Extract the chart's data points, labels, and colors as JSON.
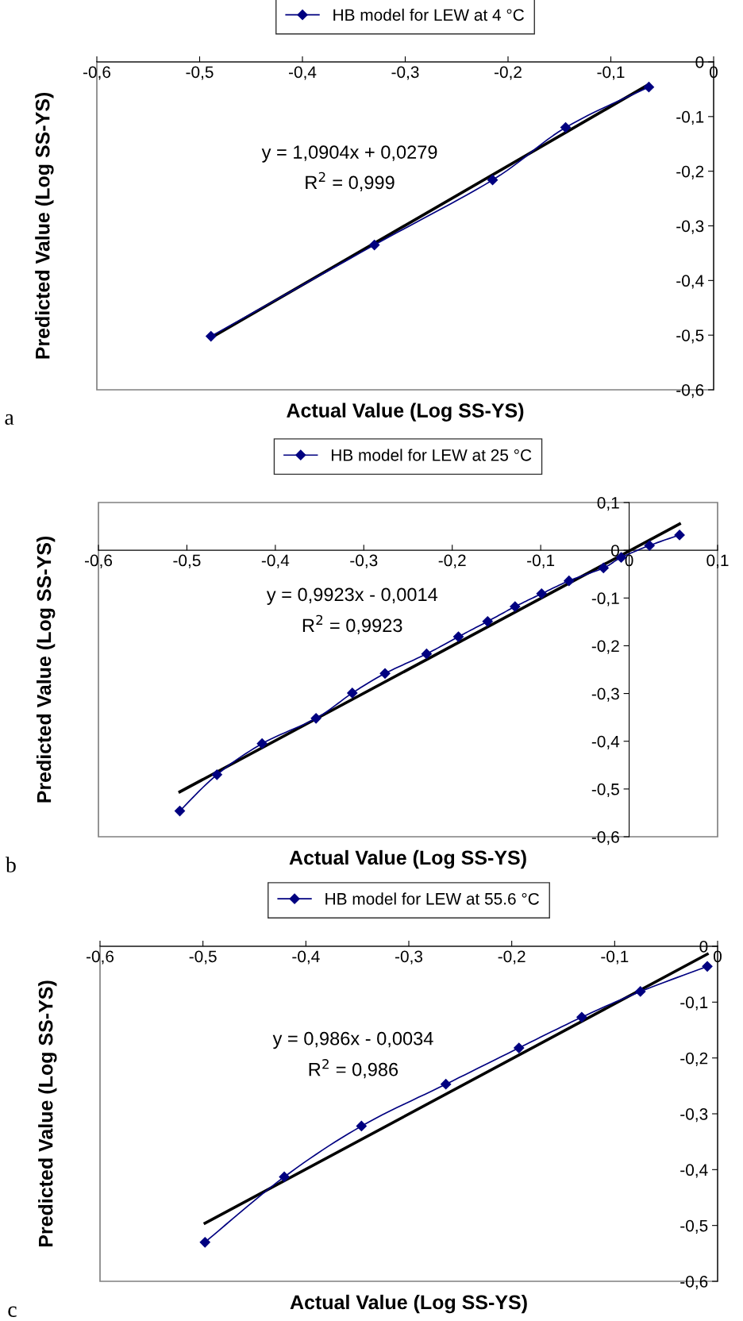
{
  "chart_data": [
    {
      "type": "line",
      "xlabel": "Actual Value (Log SS-YS)",
      "ylabel": "Predicted Value (Log SS-YS)",
      "legend": "top",
      "grid": false,
      "xlim": [
        -0.6,
        0
      ],
      "ylim": [
        -0.6,
        0
      ],
      "xticks": [
        {
          "value": -0.6,
          "label": "-0,6"
        },
        {
          "value": -0.5,
          "label": "-0,5"
        },
        {
          "value": -0.4,
          "label": "-0,4"
        },
        {
          "value": -0.3,
          "label": "-0,3"
        },
        {
          "value": -0.2,
          "label": "-0,2"
        },
        {
          "value": -0.1,
          "label": "-0,1"
        },
        0
      ],
      "yticks": [
        {
          "value": -0.6,
          "label": "-0,6"
        },
        {
          "value": -0.5,
          "label": "-0,5"
        },
        {
          "value": -0.4,
          "label": "-0,4"
        },
        {
          "value": -0.3,
          "label": "-0,3"
        },
        {
          "value": -0.2,
          "label": "-0,2"
        },
        {
          "value": -0.1,
          "label": "-0,1"
        },
        0
      ],
      "series": [
        {
          "name": "HB model for LEW at 4 °C",
          "color": "#000080",
          "marker": "diamond",
          "x": [
            -0.489,
            -0.33,
            -0.215,
            -0.144,
            -0.063
          ],
          "values": [
            -0.502,
            -0.335,
            -0.216,
            -0.12,
            -0.046
          ]
        },
        {
          "type": "line",
          "color": "#000000",
          "marker": "none",
          "x": [
            -0.489,
            -0.063
          ],
          "values": [
            -0.505,
            -0.041
          ]
        }
      ],
      "annotations": [
        "y = 1,0904x + 0,0279",
        "R$^{2}$ = 0,999",
        "a"
      ]
    },
    {
      "type": "line",
      "xlabel": "Actual Value (Log SS-YS)",
      "ylabel": "Predicted Value (Log SS-YS)",
      "legend": "top",
      "grid": false,
      "xlim": [
        -0.6,
        0.1
      ],
      "ylim": [
        -0.6,
        0.1
      ],
      "xticks": [
        {
          "value": -0.6,
          "label": "-0,6"
        },
        {
          "value": -0.5,
          "label": "-0,5"
        },
        {
          "value": -0.4,
          "label": "-0,4"
        },
        {
          "value": -0.3,
          "label": "-0,3"
        },
        {
          "value": -0.2,
          "label": "-0,2"
        },
        {
          "value": -0.1,
          "label": "-0,1"
        },
        0,
        {
          "value": 0.1,
          "label": "0,1"
        }
      ],
      "yticks": [
        {
          "value": -0.6,
          "label": "-0,6"
        },
        {
          "value": -0.5,
          "label": "-0,5"
        },
        {
          "value": -0.4,
          "label": "-0,4"
        },
        {
          "value": -0.3,
          "label": "-0,3"
        },
        {
          "value": -0.2,
          "label": "-0,2"
        },
        {
          "value": -0.1,
          "label": "-0,1"
        },
        0,
        {
          "value": 0.1,
          "label": "0,1"
        }
      ],
      "series": [
        {
          "name": "HB model for LEW at 25 °C",
          "color": "#000080",
          "marker": "diamond",
          "x": [
            -0.508,
            -0.466,
            -0.415,
            -0.354,
            -0.313,
            -0.276,
            -0.229,
            -0.193,
            -0.16,
            -0.129,
            -0.099,
            -0.068,
            -0.029,
            -0.009,
            0.023,
            0.057
          ],
          "values": [
            -0.546,
            -0.47,
            -0.405,
            -0.352,
            -0.299,
            -0.258,
            -0.217,
            -0.181,
            -0.149,
            -0.118,
            -0.091,
            -0.064,
            -0.037,
            -0.015,
            0.01,
            0.032
          ]
        },
        {
          "type": "line",
          "color": "#000000",
          "marker": "none",
          "x": [
            -0.508,
            0.057
          ],
          "values": [
            -0.506,
            0.055
          ]
        }
      ],
      "annotations": [
        "y = 0,9923x - 0,0014",
        "R$^{2}$ = 0,9923",
        "b"
      ]
    },
    {
      "type": "line",
      "xlabel": "Actual Value (Log SS-YS)",
      "ylabel": "Predicted Value (Log SS-YS)",
      "legend": "top",
      "grid": false,
      "xlim": [
        -0.6,
        0
      ],
      "ylim": [
        -0.6,
        0
      ],
      "xticks": [
        {
          "value": -0.6,
          "label": "-0,6"
        },
        {
          "value": -0.5,
          "label": "-0,5"
        },
        {
          "value": -0.4,
          "label": "-0,4"
        },
        {
          "value": -0.3,
          "label": "-0,3"
        },
        {
          "value": -0.2,
          "label": "-0,2"
        },
        {
          "value": -0.1,
          "label": "-0,1"
        },
        0
      ],
      "yticks": [
        {
          "value": -0.6,
          "label": "-0,6"
        },
        {
          "value": -0.5,
          "label": "-0,5"
        },
        {
          "value": -0.4,
          "label": "-0,4"
        },
        {
          "value": -0.3,
          "label": "-0,3"
        },
        {
          "value": -0.2,
          "label": "-0,2"
        },
        {
          "value": -0.1,
          "label": "-0,1"
        },
        0
      ],
      "series": [
        {
          "name": "HB model for LEW at 55.6 °C",
          "color": "#000080",
          "marker": "diamond",
          "x": [
            -0.498,
            -0.421,
            -0.346,
            -0.264,
            -0.193,
            -0.132,
            -0.075,
            -0.01
          ],
          "values": [
            -0.53,
            -0.413,
            -0.322,
            -0.247,
            -0.182,
            -0.127,
            -0.081,
            -0.036
          ]
        },
        {
          "type": "line",
          "color": "#000000",
          "marker": "none",
          "x": [
            -0.498,
            -0.01
          ],
          "values": [
            -0.496,
            -0.014
          ]
        }
      ],
      "annotations": [
        "y = 0,986x - 0,0034",
        "R$^{2}$ = 0,986",
        "c"
      ]
    }
  ]
}
